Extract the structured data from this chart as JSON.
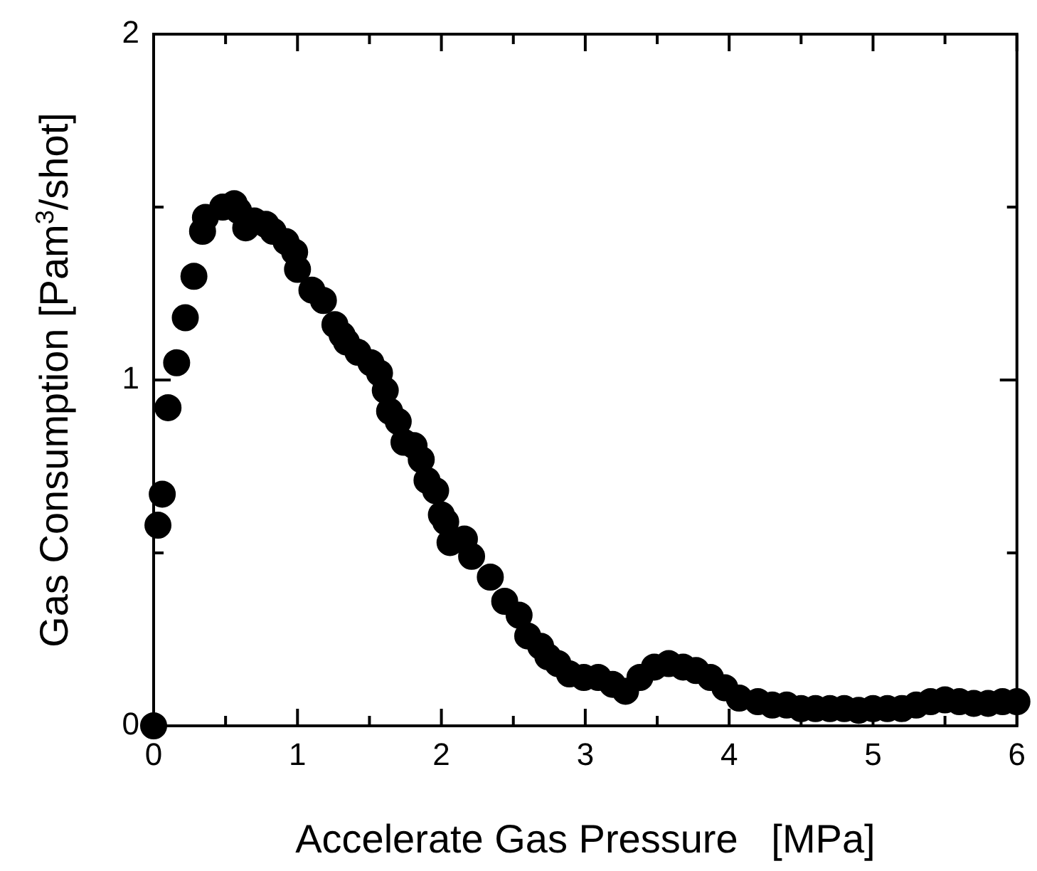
{
  "chart_data": {
    "type": "scatter",
    "xlabel": "Accelerate Gas Pressure   [MPa]",
    "ylabel": "Gas Consumption   [Pam$^{3}$/shot]",
    "xlim": [
      0,
      6
    ],
    "ylim": [
      0,
      2
    ],
    "xticks": [
      0,
      {
        "value": 0.5,
        "label": null
      },
      1,
      {
        "value": 1.5,
        "label": null
      },
      2,
      {
        "value": 2.5,
        "label": null
      },
      3,
      {
        "value": 3.5,
        "label": null
      },
      4,
      {
        "value": 4.5,
        "label": null
      },
      5,
      {
        "value": 5.5,
        "label": null
      },
      6
    ],
    "yticks": [
      0,
      {
        "value": 0.5,
        "label": null
      },
      1,
      {
        "value": 1.5,
        "label": null
      },
      2
    ],
    "grid": false,
    "legend": false,
    "marker": "circle",
    "series": [
      {
        "color": "#000000",
        "x": [
          0,
          0.03,
          0.06,
          0.1,
          0.16,
          0.22,
          0.28,
          0.34,
          0.36,
          0.48,
          0.56,
          0.59,
          0.64,
          0.7,
          0.78,
          0.83,
          0.92,
          0.98,
          1.0,
          1.1,
          1.18,
          1.26,
          1.31,
          1.34,
          1.42,
          1.51,
          1.57,
          1.61,
          1.64,
          1.7,
          1.74,
          1.81,
          1.86,
          1.9,
          1.96,
          2.0,
          2.03,
          2.06,
          2.16,
          2.21,
          2.34,
          2.44,
          2.54,
          2.6,
          2.69,
          2.74,
          2.81,
          2.89,
          2.99,
          3.09,
          3.19,
          3.28,
          3.38,
          3.48,
          3.58,
          3.68,
          3.77,
          3.87,
          3.97,
          4.07,
          4.2,
          4.3,
          4.4,
          4.5,
          4.6,
          4.7,
          4.8,
          4.9,
          5.0,
          5.1,
          5.2,
          5.3,
          5.4,
          5.5,
          5.6,
          5.7,
          5.8,
          5.9,
          6.0
        ],
        "values": [
          0,
          0.58,
          0.67,
          0.92,
          1.05,
          1.18,
          1.3,
          1.43,
          1.47,
          1.5,
          1.51,
          1.49,
          1.44,
          1.46,
          1.45,
          1.43,
          1.4,
          1.37,
          1.32,
          1.26,
          1.23,
          1.16,
          1.13,
          1.11,
          1.08,
          1.05,
          1.02,
          0.97,
          0.91,
          0.88,
          0.82,
          0.81,
          0.77,
          0.71,
          0.68,
          0.61,
          0.59,
          0.53,
          0.54,
          0.49,
          0.43,
          0.36,
          0.32,
          0.26,
          0.23,
          0.2,
          0.18,
          0.15,
          0.14,
          0.14,
          0.12,
          0.1,
          0.14,
          0.17,
          0.18,
          0.17,
          0.16,
          0.14,
          0.11,
          0.08,
          0.07,
          0.06,
          0.06,
          0.05,
          0.05,
          0.05,
          0.05,
          0.045,
          0.05,
          0.05,
          0.05,
          0.06,
          0.07,
          0.075,
          0.07,
          0.065,
          0.065,
          0.07,
          0.07
        ]
      }
    ]
  }
}
